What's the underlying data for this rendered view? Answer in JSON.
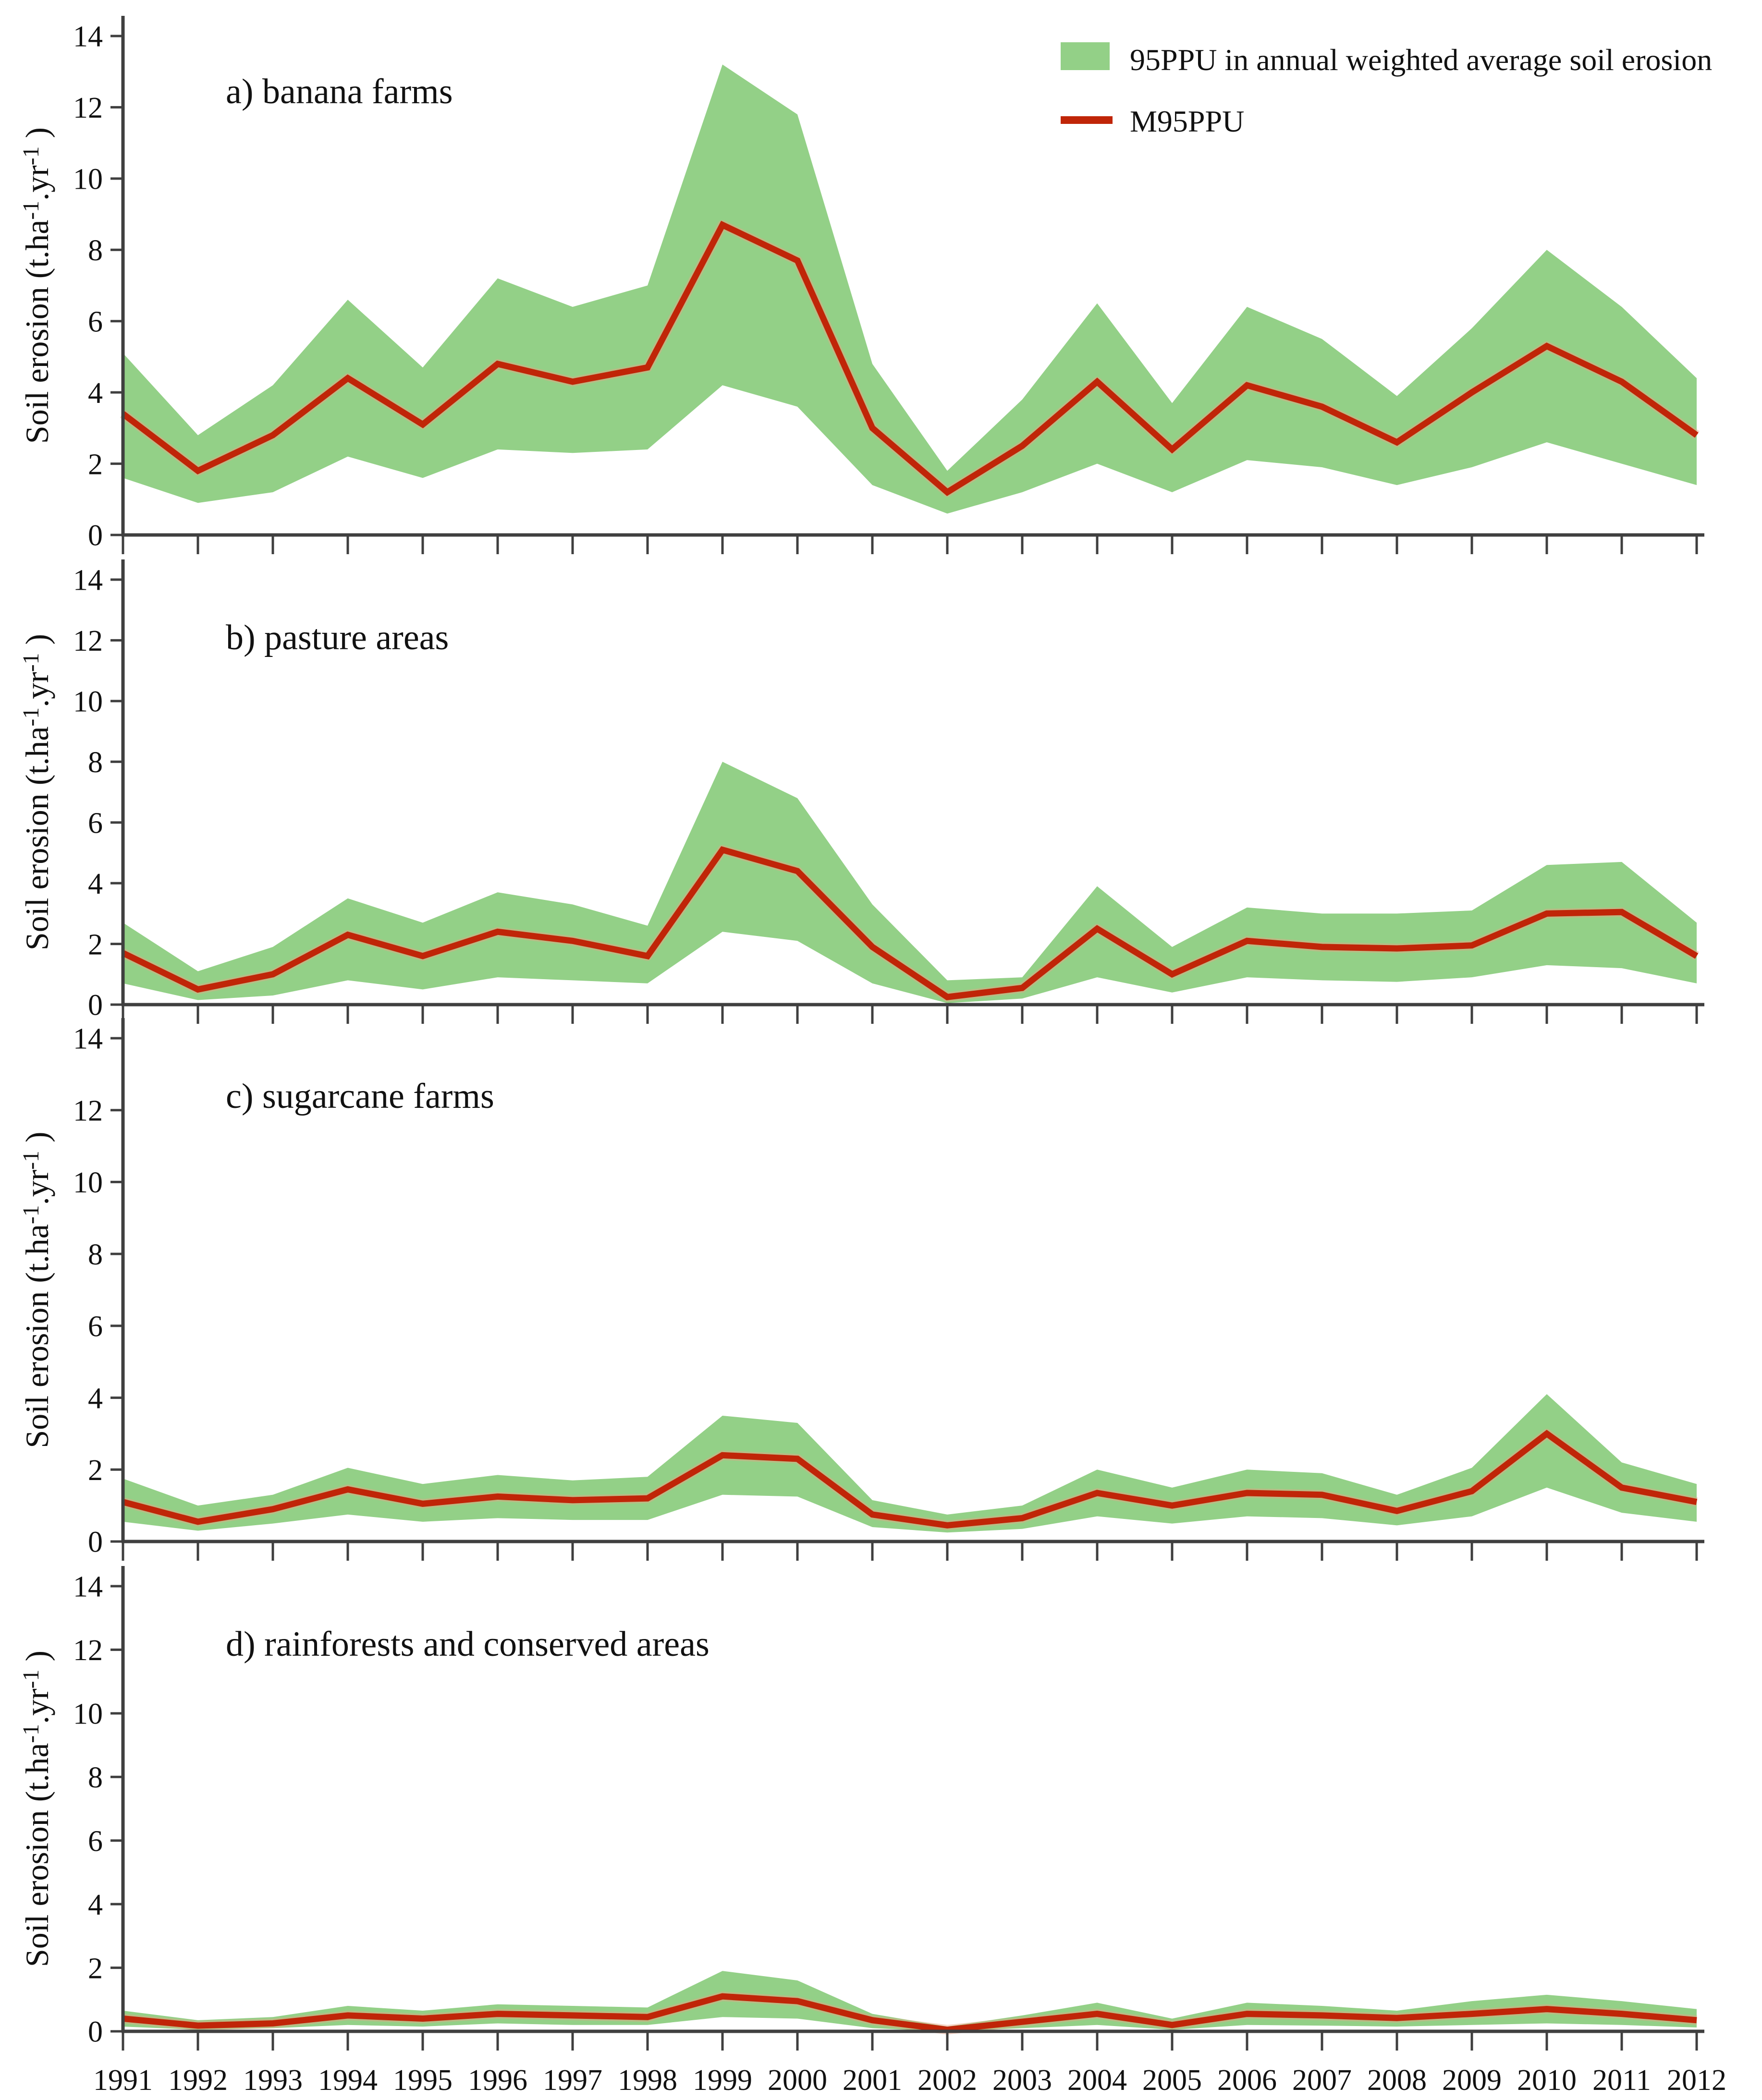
{
  "figure": {
    "kind": "four stacked uncertainty-band time series panels",
    "background": "#ffffff"
  },
  "colors": {
    "band": "#93D087",
    "line": "#C02508",
    "axis": "#3f3f3f",
    "text": "#111111"
  },
  "legend": {
    "band_label": "95PPU in annual weighted average soil erosion",
    "line_label": "M95PPU"
  },
  "axes": {
    "ylabel": "Soil erosion (t.ha⁻¹.yr⁻¹ )",
    "ylim": [
      0,
      14
    ],
    "yticks": [
      0,
      2,
      4,
      6,
      8,
      10,
      12,
      14
    ],
    "x_tick_years": [
      1991,
      1992,
      1993,
      1994,
      1995,
      1996,
      1997,
      1998,
      1999,
      2000,
      2001,
      2002,
      2003,
      2004,
      2005,
      2006,
      2007,
      2008,
      2009,
      2010,
      2011,
      2012
    ],
    "grid": "off",
    "legend_position": "top-right of panel a"
  },
  "chart_data": [
    {
      "type": "area",
      "subtype": "uncertainty band with median line",
      "title": "a) banana farms",
      "ylim": [
        0,
        14
      ],
      "categories": [
        1991,
        1992,
        1993,
        1994,
        1995,
        1996,
        1997,
        1998,
        1999,
        2000,
        2001,
        2002,
        2003,
        2004,
        2005,
        2006,
        2007,
        2008,
        2009,
        2010,
        2011,
        2012
      ],
      "series": [
        {
          "name": "95PPU upper bound",
          "values": [
            5.1,
            2.8,
            4.2,
            6.6,
            4.7,
            7.2,
            6.4,
            7.0,
            13.2,
            11.8,
            4.8,
            1.8,
            3.8,
            6.5,
            3.7,
            6.4,
            5.5,
            3.9,
            5.8,
            8.0,
            6.4,
            4.4
          ]
        },
        {
          "name": "95PPU lower bound",
          "values": [
            1.6,
            0.9,
            1.2,
            2.2,
            1.6,
            2.4,
            2.3,
            2.4,
            4.2,
            3.6,
            1.4,
            0.6,
            1.2,
            2.0,
            1.2,
            2.1,
            1.9,
            1.4,
            1.9,
            2.6,
            2.0,
            1.4
          ]
        },
        {
          "name": "M95PPU",
          "values": [
            3.4,
            1.8,
            2.8,
            4.4,
            3.1,
            4.8,
            4.3,
            4.7,
            8.7,
            7.7,
            3.0,
            1.2,
            2.5,
            4.3,
            2.4,
            4.2,
            3.6,
            2.6,
            4.0,
            5.3,
            4.3,
            2.8
          ]
        }
      ]
    },
    {
      "type": "area",
      "subtype": "uncertainty band with median line",
      "title": "b) pasture areas",
      "ylim": [
        0,
        14
      ],
      "categories": [
        1991,
        1992,
        1993,
        1994,
        1995,
        1996,
        1997,
        1998,
        1999,
        2000,
        2001,
        2002,
        2003,
        2004,
        2005,
        2006,
        2007,
        2008,
        2009,
        2010,
        2011,
        2012
      ],
      "series": [
        {
          "name": "95PPU upper bound",
          "values": [
            2.7,
            1.1,
            1.9,
            3.5,
            2.7,
            3.7,
            3.3,
            2.6,
            8.0,
            6.8,
            3.3,
            0.8,
            0.9,
            3.9,
            1.9,
            3.2,
            3.0,
            3.0,
            3.1,
            4.6,
            4.7,
            2.7
          ]
        },
        {
          "name": "95PPU lower bound",
          "values": [
            0.7,
            0.15,
            0.3,
            0.8,
            0.5,
            0.9,
            0.8,
            0.7,
            2.4,
            2.1,
            0.7,
            0.05,
            0.2,
            0.9,
            0.4,
            0.9,
            0.8,
            0.75,
            0.9,
            1.3,
            1.2,
            0.7
          ]
        },
        {
          "name": "M95PPU",
          "values": [
            1.7,
            0.5,
            1.0,
            2.3,
            1.6,
            2.4,
            2.1,
            1.6,
            5.1,
            4.4,
            1.9,
            0.25,
            0.55,
            2.5,
            1.0,
            2.1,
            1.9,
            1.85,
            1.95,
            3.0,
            3.05,
            1.6
          ]
        }
      ]
    },
    {
      "type": "area",
      "subtype": "uncertainty band with median line",
      "title": "c) sugarcane farms",
      "ylim": [
        0,
        14
      ],
      "categories": [
        1991,
        1992,
        1993,
        1994,
        1995,
        1996,
        1997,
        1998,
        1999,
        2000,
        2001,
        2002,
        2003,
        2004,
        2005,
        2006,
        2007,
        2008,
        2009,
        2010,
        2011,
        2012
      ],
      "series": [
        {
          "name": "95PPU upper bound",
          "values": [
            1.75,
            1.0,
            1.3,
            2.05,
            1.6,
            1.85,
            1.7,
            1.8,
            3.5,
            3.3,
            1.15,
            0.75,
            1.0,
            2.0,
            1.5,
            2.0,
            1.9,
            1.3,
            2.05,
            4.1,
            2.2,
            1.6
          ]
        },
        {
          "name": "95PPU lower bound",
          "values": [
            0.55,
            0.3,
            0.5,
            0.75,
            0.55,
            0.65,
            0.6,
            0.6,
            1.3,
            1.25,
            0.4,
            0.25,
            0.35,
            0.7,
            0.5,
            0.7,
            0.65,
            0.45,
            0.7,
            1.5,
            0.8,
            0.55
          ]
        },
        {
          "name": "M95PPU",
          "values": [
            1.1,
            0.55,
            0.9,
            1.45,
            1.05,
            1.25,
            1.15,
            1.2,
            2.4,
            2.3,
            0.75,
            0.45,
            0.65,
            1.35,
            1.0,
            1.35,
            1.3,
            0.85,
            1.4,
            3.0,
            1.5,
            1.1
          ]
        }
      ]
    },
    {
      "type": "area",
      "subtype": "uncertainty band with median line",
      "title": "d) rainforests and conserved areas",
      "ylim": [
        0,
        14
      ],
      "categories": [
        1991,
        1992,
        1993,
        1994,
        1995,
        1996,
        1997,
        1998,
        1999,
        2000,
        2001,
        2002,
        2003,
        2004,
        2005,
        2006,
        2007,
        2008,
        2009,
        2010,
        2011,
        2012
      ],
      "series": [
        {
          "name": "95PPU upper bound",
          "values": [
            0.65,
            0.35,
            0.45,
            0.8,
            0.65,
            0.85,
            0.8,
            0.75,
            1.9,
            1.6,
            0.55,
            0.15,
            0.5,
            0.9,
            0.4,
            0.9,
            0.8,
            0.65,
            0.95,
            1.15,
            0.95,
            0.7
          ]
        },
        {
          "name": "95PPU lower bound",
          "values": [
            0.15,
            0.05,
            0.1,
            0.2,
            0.15,
            0.25,
            0.2,
            0.2,
            0.45,
            0.4,
            0.1,
            0.0,
            0.1,
            0.2,
            0.05,
            0.2,
            0.18,
            0.15,
            0.2,
            0.25,
            0.2,
            0.12
          ]
        },
        {
          "name": "M95PPU",
          "values": [
            0.4,
            0.18,
            0.25,
            0.5,
            0.4,
            0.55,
            0.5,
            0.45,
            1.1,
            0.95,
            0.35,
            0.05,
            0.3,
            0.55,
            0.2,
            0.55,
            0.5,
            0.42,
            0.55,
            0.7,
            0.55,
            0.35
          ]
        }
      ]
    }
  ]
}
